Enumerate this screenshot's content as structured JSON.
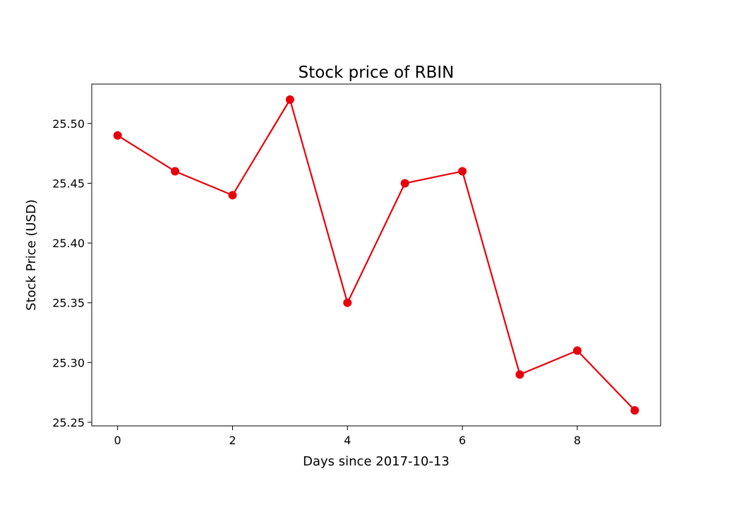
{
  "chart_data": {
    "type": "line",
    "title": "Stock price of RBIN",
    "xlabel": "Days since 2017-10-13",
    "ylabel": "Stock Price (USD)",
    "x": [
      0,
      1,
      2,
      3,
      4,
      5,
      6,
      7,
      8,
      9
    ],
    "series": [
      {
        "values": [
          25.49,
          25.46,
          25.44,
          25.52,
          25.35,
          25.45,
          25.46,
          25.29,
          25.31,
          25.26
        ],
        "color": "#e8000b",
        "marker": "circle"
      }
    ],
    "xticks": [
      "0",
      "2",
      "4",
      "6",
      "8"
    ],
    "yticks": [
      "25.25",
      "25.30",
      "25.35",
      "25.40",
      "25.45",
      "25.50"
    ],
    "xlim": [
      -0.45,
      9.45
    ],
    "ylim": [
      25.247,
      25.533
    ],
    "grid": false,
    "legend": false
  }
}
